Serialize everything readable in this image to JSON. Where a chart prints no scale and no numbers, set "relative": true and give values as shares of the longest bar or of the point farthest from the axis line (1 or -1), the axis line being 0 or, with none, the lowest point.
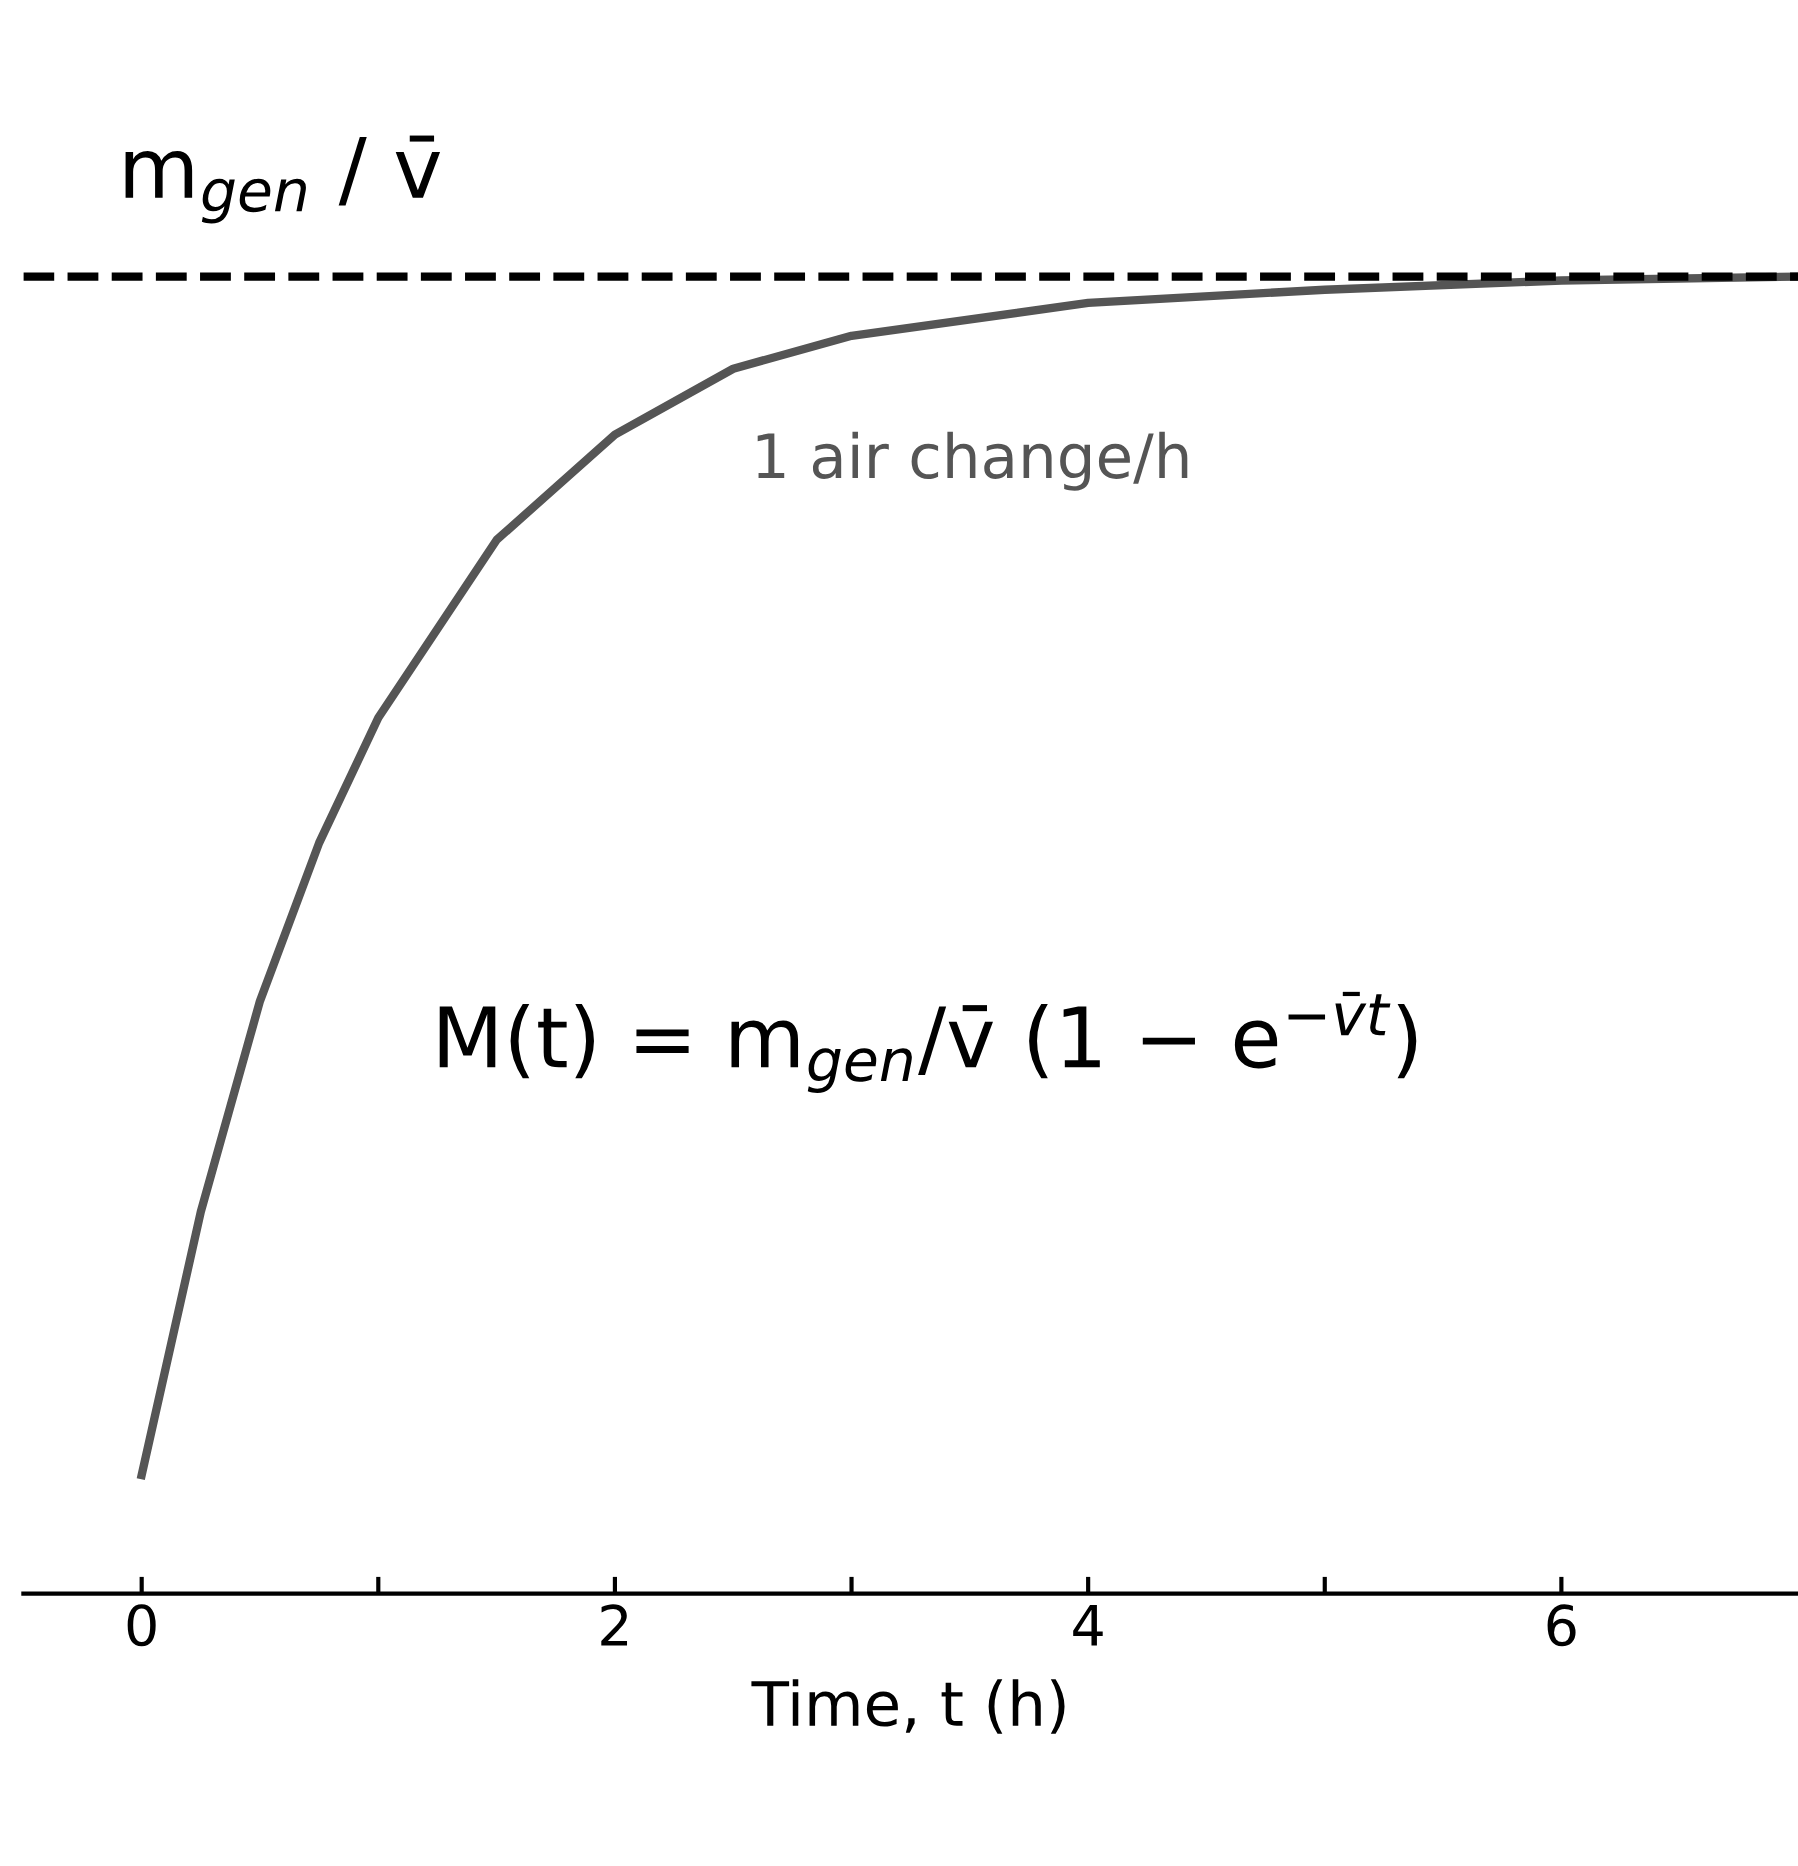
{
  "chart_data": {
    "type": "line",
    "relative": true,
    "xlabel": "Time, t (h)",
    "x": [
      0,
      0.25,
      0.5,
      0.75,
      1,
      1.5,
      2,
      2.5,
      3,
      4,
      5,
      6,
      7
    ],
    "series": [
      {
        "color": "#555555",
        "values": [
          0.09,
          0.29,
          0.45,
          0.57,
          0.665,
          0.8,
          0.88,
          0.93,
          0.955,
          0.98,
          0.99,
          0.997,
          1.0
        ]
      }
    ],
    "xlim": [
      -0.5,
      7
    ],
    "xticks": [
      0,
      {
        "value": 1,
        "label": null
      },
      2,
      {
        "value": 3,
        "label": null
      },
      4,
      {
        "value": 5,
        "label": null
      },
      6
    ],
    "tick_labels": "x",
    "grid": false,
    "legend": false,
    "marker": "none",
    "line_style": "solid",
    "ref_lines": [
      {
        "axis": "y",
        "value": 1.0,
        "label": "m$_{gen}$ / v̄",
        "color": "#000000",
        "line_style": "dashed"
      }
    ],
    "annotations": [
      "1 air change/h",
      "M(t) = m$_{gen}$/v̄ (1 − e$^{−v̄t}$)"
    ]
  }
}
